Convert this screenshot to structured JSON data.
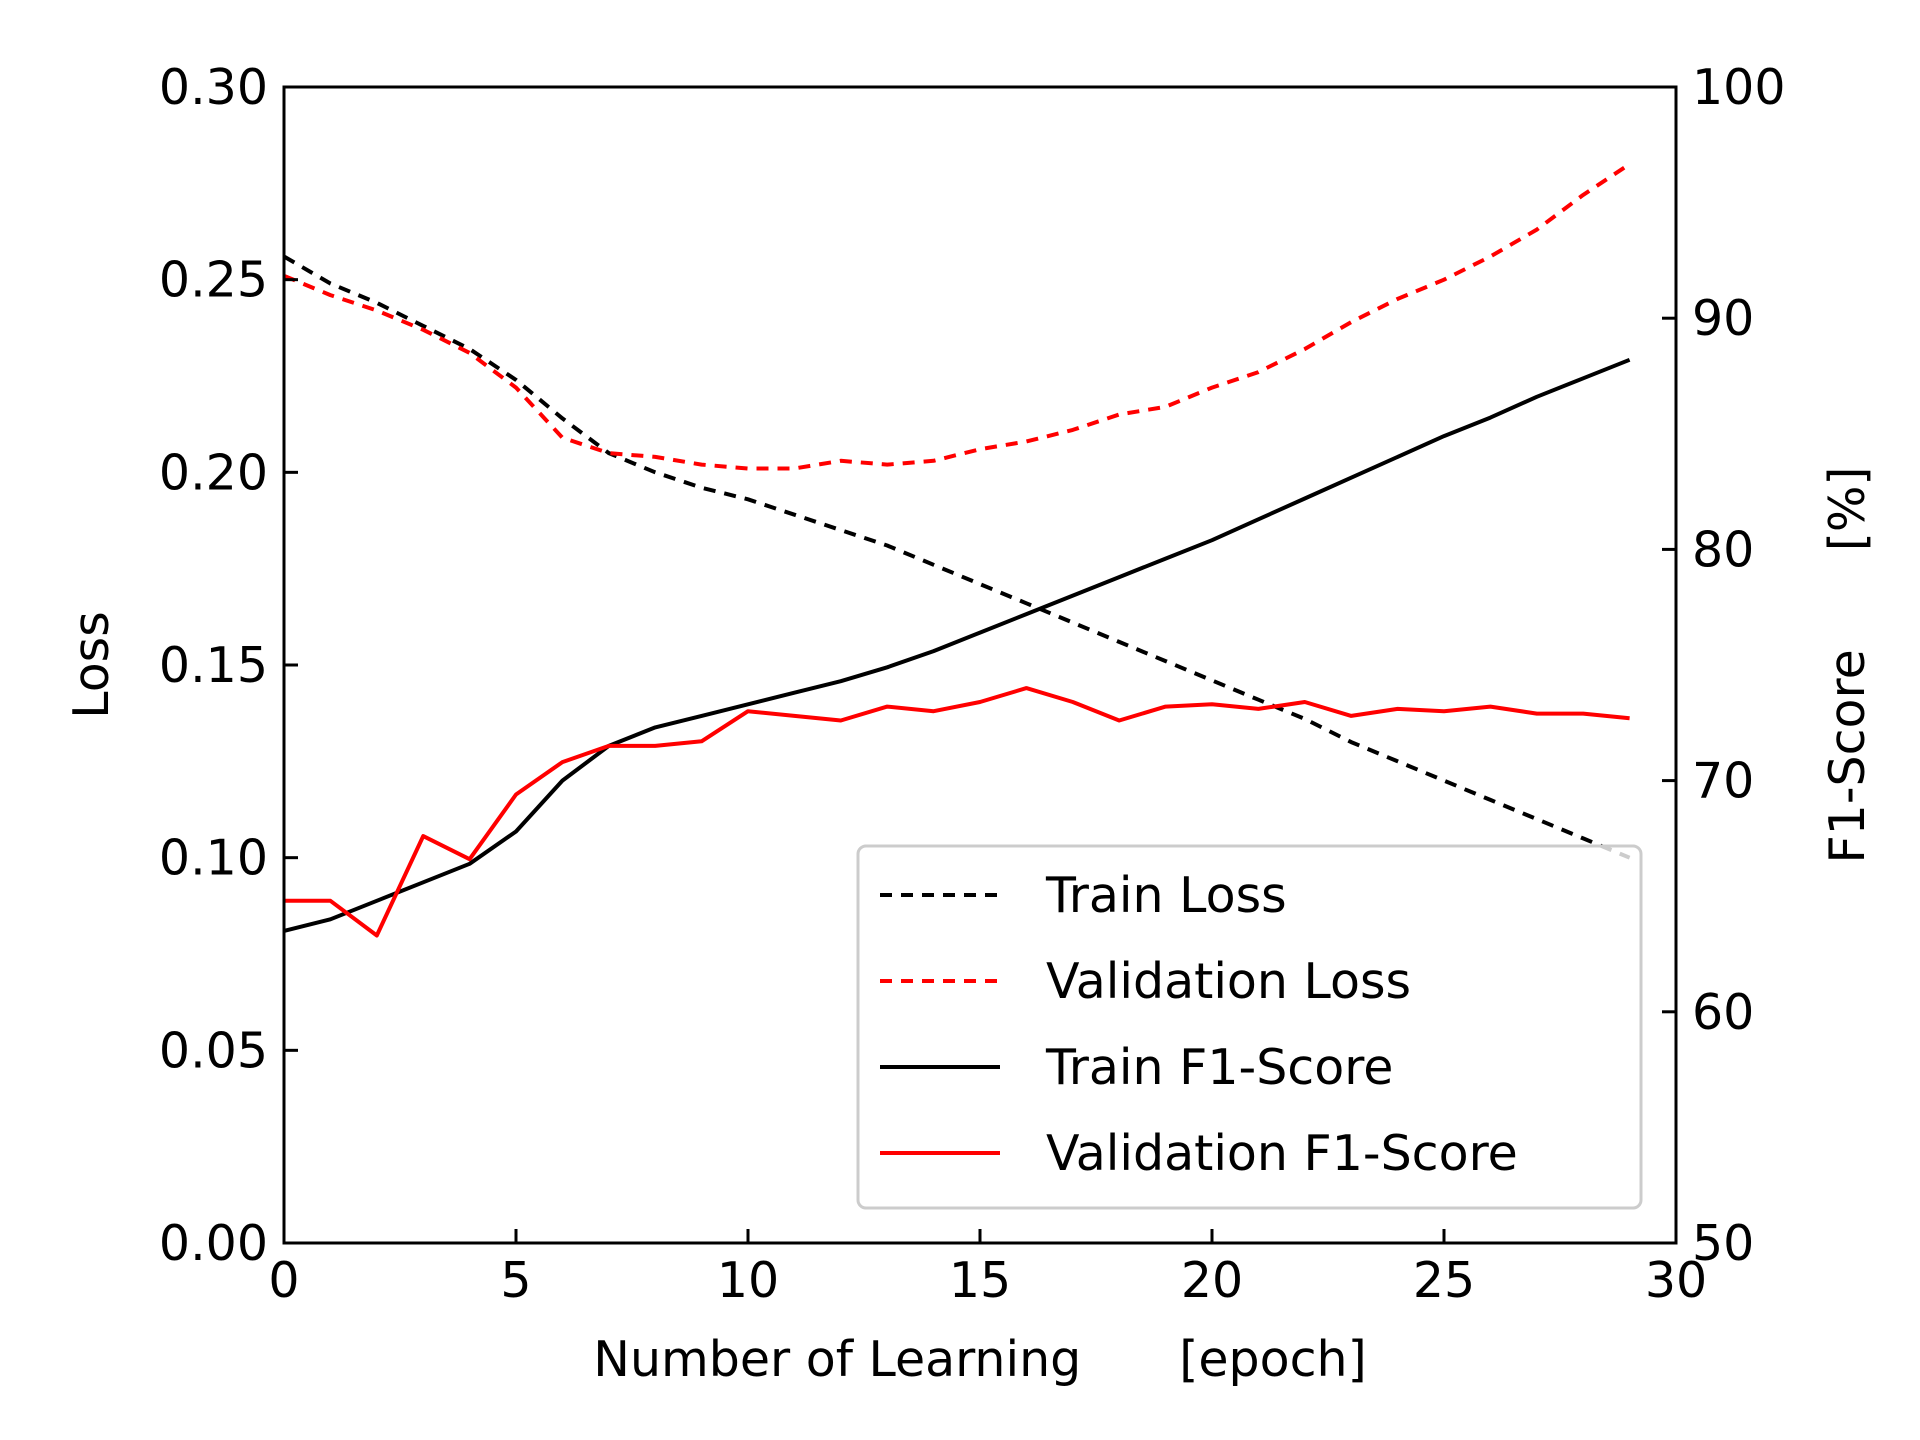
{
  "chart_data": {
    "type": "line",
    "title": "",
    "xlabel": "Number of Learning  [epoch]",
    "ylabel_left": "Loss",
    "ylabel_right": "F1-Score  [%]",
    "xlim": [
      0,
      30
    ],
    "ylim_left": [
      0,
      0.3
    ],
    "ylim_right": [
      50,
      100
    ],
    "x_ticks": [
      "0",
      "5",
      "10",
      "15",
      "20",
      "25",
      "30"
    ],
    "y_left_ticks": [
      "0.00",
      "0.05",
      "0.10",
      "0.15",
      "0.20",
      "0.25",
      "0.30"
    ],
    "y_right_ticks": [
      "50",
      "60",
      "70",
      "80",
      "90",
      "100"
    ],
    "grid": false,
    "legend_position": "lower-right",
    "x": [
      0,
      1,
      2,
      3,
      4,
      5,
      6,
      7,
      8,
      9,
      10,
      11,
      12,
      13,
      14,
      15,
      16,
      17,
      18,
      19,
      20,
      21,
      22,
      23,
      24,
      25,
      26,
      27,
      28,
      29
    ],
    "series": [
      {
        "name": "Train Loss",
        "axis": "left",
        "color": "#000000",
        "style": "dashed",
        "values": [
          0.256,
          0.249,
          0.244,
          0.238,
          0.232,
          0.224,
          0.214,
          0.205,
          0.2,
          0.196,
          0.193,
          0.189,
          0.185,
          0.181,
          0.176,
          0.171,
          0.166,
          0.161,
          0.156,
          0.151,
          0.146,
          0.141,
          0.136,
          0.13,
          0.125,
          0.12,
          0.115,
          0.11,
          0.105,
          0.1
        ]
      },
      {
        "name": "Validation Loss",
        "axis": "left",
        "color": "#ff0000",
        "style": "dashed",
        "values": [
          0.251,
          0.246,
          0.242,
          0.237,
          0.231,
          0.222,
          0.209,
          0.205,
          0.204,
          0.202,
          0.201,
          0.201,
          0.203,
          0.202,
          0.203,
          0.206,
          0.208,
          0.211,
          0.215,
          0.217,
          0.222,
          0.226,
          0.232,
          0.239,
          0.245,
          0.25,
          0.256,
          0.263,
          0.272,
          0.28
        ]
      },
      {
        "name": "Train F1-Score",
        "axis": "right",
        "color": "#000000",
        "style": "solid",
        "values": [
          63.5,
          64.0,
          64.8,
          65.6,
          66.4,
          67.8,
          70.0,
          71.5,
          72.3,
          72.8,
          73.3,
          73.8,
          74.3,
          74.9,
          75.6,
          76.4,
          77.2,
          78.0,
          78.8,
          79.6,
          80.4,
          81.3,
          82.2,
          83.1,
          84.0,
          84.9,
          85.7,
          86.6,
          87.4,
          88.2
        ]
      },
      {
        "name": "Validation F1-Score",
        "axis": "right",
        "color": "#ff0000",
        "style": "solid",
        "values": [
          64.8,
          64.8,
          63.3,
          67.6,
          66.6,
          69.4,
          70.8,
          71.5,
          71.5,
          71.7,
          73.0,
          72.8,
          72.6,
          73.2,
          73.0,
          73.4,
          74.0,
          73.4,
          72.6,
          73.2,
          73.3,
          73.1,
          73.4,
          72.8,
          73.1,
          73.0,
          73.2,
          72.9,
          72.9,
          72.7
        ]
      }
    ]
  }
}
